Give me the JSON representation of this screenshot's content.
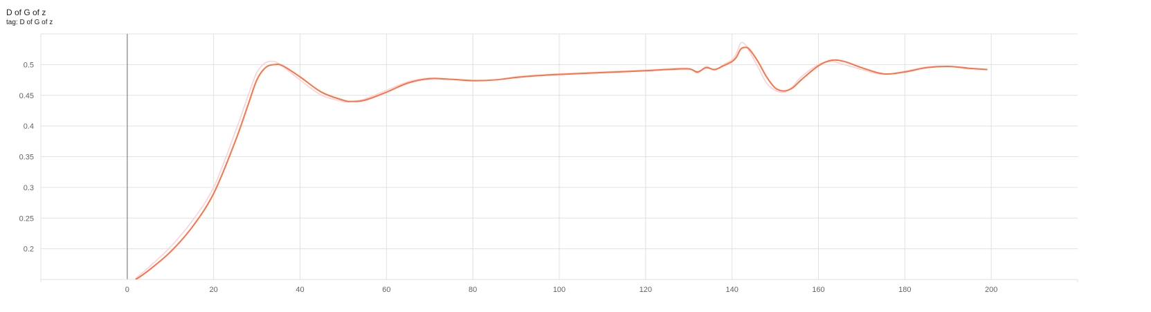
{
  "card": {
    "title": "D of G of z",
    "subtitle": "tag: D of G of z"
  },
  "colors": {
    "smoothed": "#ff7043",
    "raw": "#ffcdd2",
    "grid": "#e0e0e0",
    "zero_axis": "#999999"
  },
  "chart_data": {
    "type": "line",
    "title": "D of G of z",
    "xlabel": "",
    "ylabel": "",
    "xlim": [
      -20,
      220
    ],
    "ylim": [
      0.15,
      0.55
    ],
    "x_ticks": [
      0,
      20,
      40,
      60,
      80,
      100,
      120,
      140,
      160,
      180,
      200
    ],
    "y_ticks": [
      0.2,
      0.25,
      0.3,
      0.35,
      0.4,
      0.45,
      0.5
    ],
    "x_tick_labels": [
      "0",
      "20",
      "40",
      "60",
      "80",
      "100",
      "120",
      "140",
      "160",
      "180",
      "200"
    ],
    "y_tick_labels": [
      "0.2",
      "0.25",
      "0.3",
      "0.35",
      "0.4",
      "0.45",
      "0.5"
    ],
    "grid": true,
    "series": [
      {
        "role": "smoothed",
        "x": [
          2,
          5,
          10,
          15,
          20,
          25,
          28,
          30,
          32,
          34,
          36,
          40,
          45,
          50,
          52,
          55,
          60,
          65,
          70,
          75,
          80,
          85,
          90,
          95,
          100,
          110,
          120,
          125,
          130,
          132,
          134,
          136,
          138,
          140,
          141,
          142,
          143,
          144,
          146,
          148,
          150,
          152,
          154,
          156,
          160,
          163,
          166,
          170,
          175,
          180,
          185,
          190,
          195,
          199
        ],
        "y": [
          0.15,
          0.165,
          0.195,
          0.235,
          0.29,
          0.375,
          0.435,
          0.475,
          0.495,
          0.5,
          0.498,
          0.48,
          0.455,
          0.442,
          0.44,
          0.442,
          0.455,
          0.47,
          0.477,
          0.476,
          0.474,
          0.475,
          0.479,
          0.482,
          0.484,
          0.487,
          0.49,
          0.492,
          0.493,
          0.488,
          0.495,
          0.492,
          0.498,
          0.505,
          0.512,
          0.525,
          0.528,
          0.525,
          0.505,
          0.48,
          0.462,
          0.457,
          0.462,
          0.475,
          0.498,
          0.507,
          0.505,
          0.495,
          0.485,
          0.488,
          0.495,
          0.497,
          0.494,
          0.492
        ]
      },
      {
        "role": "raw",
        "x": [
          2,
          5,
          10,
          15,
          20,
          25,
          28,
          30,
          32,
          34,
          36,
          40,
          45,
          50,
          52,
          55,
          60,
          65,
          70,
          75,
          80,
          85,
          90,
          95,
          100,
          110,
          120,
          125,
          130,
          132,
          134,
          136,
          138,
          140,
          141,
          142,
          143,
          144,
          146,
          148,
          150,
          152,
          154,
          156,
          160,
          163,
          166,
          170,
          175,
          180,
          185,
          190,
          195,
          199
        ],
        "y": [
          0.152,
          0.17,
          0.203,
          0.245,
          0.3,
          0.39,
          0.45,
          0.487,
          0.503,
          0.505,
          0.497,
          0.475,
          0.45,
          0.44,
          0.44,
          0.444,
          0.458,
          0.472,
          0.478,
          0.476,
          0.473,
          0.475,
          0.48,
          0.483,
          0.485,
          0.488,
          0.491,
          0.493,
          0.494,
          0.486,
          0.497,
          0.491,
          0.5,
          0.508,
          0.518,
          0.535,
          0.533,
          0.522,
          0.496,
          0.47,
          0.458,
          0.455,
          0.464,
          0.48,
          0.5,
          0.505,
          0.5,
          0.492,
          0.484,
          0.489,
          0.496,
          0.497,
          0.493,
          0.492
        ]
      }
    ]
  }
}
